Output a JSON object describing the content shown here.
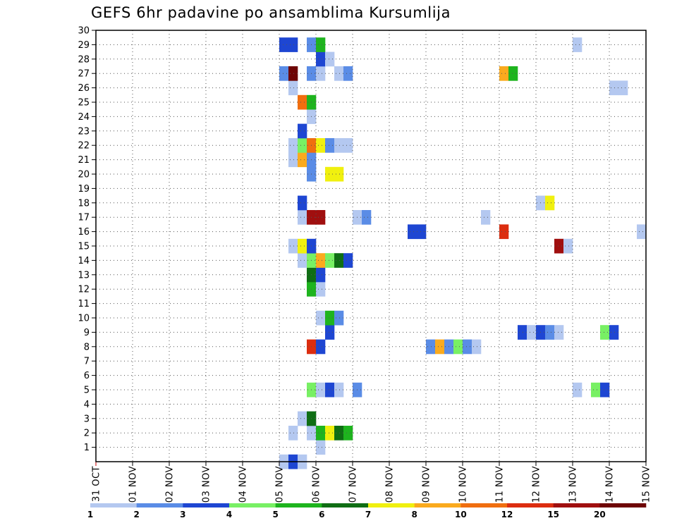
{
  "chart_data": {
    "type": "heatmap",
    "title": "GEFS 6hr padavine po ansamblima Kursumlija",
    "xlabel": "",
    "ylabel": "",
    "x_tick_labels": [
      "31 OCT",
      "01 NOV",
      "02 NOV",
      "03 NOV",
      "04 NOV",
      "05 NOV",
      "06 NOV",
      "07 NOV",
      "08 NOV",
      "09 NOV",
      "10 NOV",
      "11 NOV",
      "12 NOV",
      "13 NOV",
      "14 NOV",
      "15 NOV"
    ],
    "x_range_days": [
      0,
      15
    ],
    "time_step_hours": 6,
    "y_tick_labels": [
      "1",
      "2",
      "3",
      "4",
      "5",
      "6",
      "7",
      "8",
      "9",
      "10",
      "11",
      "12",
      "13",
      "14",
      "15",
      "16",
      "17",
      "18",
      "19",
      "20",
      "21",
      "22",
      "23",
      "24",
      "25",
      "26",
      "27",
      "28",
      "29",
      "30"
    ],
    "y_range": [
      0,
      30
    ],
    "grid": true,
    "colorbar": {
      "placement": "bottom",
      "labels": [
        "1",
        "2",
        "3",
        "4",
        "5",
        "6",
        "7",
        "8",
        "10",
        "12",
        "15",
        "20"
      ],
      "colors": [
        "#b4c8f0",
        "#5a8ce6",
        "#1e46d2",
        "#78f064",
        "#1eb41e",
        "#0f6e14",
        "#f0f00f",
        "#faaa1e",
        "#f06e0f",
        "#dc2d0f",
        "#a00f0f",
        "#6e0505"
      ]
    },
    "cells": [
      {
        "m": 0,
        "t": 20,
        "c": 0
      },
      {
        "m": 0,
        "t": 21,
        "c": 2
      },
      {
        "m": 0,
        "t": 22,
        "c": 0
      },
      {
        "m": 1,
        "t": 24,
        "c": 0
      },
      {
        "m": 2,
        "t": 21,
        "c": 0
      },
      {
        "m": 2,
        "t": 23,
        "c": 0
      },
      {
        "m": 2,
        "t": 24,
        "c": 4
      },
      {
        "m": 2,
        "t": 25,
        "c": 6
      },
      {
        "m": 2,
        "t": 26,
        "c": 5
      },
      {
        "m": 2,
        "t": 27,
        "c": 4
      },
      {
        "m": 3,
        "t": 22,
        "c": 0
      },
      {
        "m": 3,
        "t": 23,
        "c": 5
      },
      {
        "m": 5,
        "t": 23,
        "c": 3
      },
      {
        "m": 5,
        "t": 24,
        "c": 0
      },
      {
        "m": 5,
        "t": 25,
        "c": 2
      },
      {
        "m": 5,
        "t": 26,
        "c": 0
      },
      {
        "m": 5,
        "t": 28,
        "c": 1
      },
      {
        "m": 5,
        "t": 52,
        "c": 0
      },
      {
        "m": 5,
        "t": 54,
        "c": 3
      },
      {
        "m": 5,
        "t": 55,
        "c": 2
      },
      {
        "m": 8,
        "t": 23,
        "c": 9
      },
      {
        "m": 8,
        "t": 24,
        "c": 2
      },
      {
        "m": 8,
        "t": 36,
        "c": 1
      },
      {
        "m": 8,
        "t": 37,
        "c": 7
      },
      {
        "m": 8,
        "t": 38,
        "c": 1
      },
      {
        "m": 8,
        "t": 39,
        "c": 3
      },
      {
        "m": 8,
        "t": 40,
        "c": 1
      },
      {
        "m": 8,
        "t": 41,
        "c": 0
      },
      {
        "m": 9,
        "t": 25,
        "c": 2
      },
      {
        "m": 9,
        "t": 46,
        "c": 2
      },
      {
        "m": 9,
        "t": 47,
        "c": 0
      },
      {
        "m": 9,
        "t": 48,
        "c": 2
      },
      {
        "m": 9,
        "t": 49,
        "c": 1
      },
      {
        "m": 9,
        "t": 50,
        "c": 0
      },
      {
        "m": 9,
        "t": 55,
        "c": 3
      },
      {
        "m": 9,
        "t": 56,
        "c": 2
      },
      {
        "m": 10,
        "t": 24,
        "c": 0
      },
      {
        "m": 10,
        "t": 25,
        "c": 4
      },
      {
        "m": 10,
        "t": 26,
        "c": 1
      },
      {
        "m": 12,
        "t": 23,
        "c": 4
      },
      {
        "m": 12,
        "t": 24,
        "c": 0
      },
      {
        "m": 13,
        "t": 23,
        "c": 5
      },
      {
        "m": 13,
        "t": 24,
        "c": 2
      },
      {
        "m": 14,
        "t": 22,
        "c": 0
      },
      {
        "m": 14,
        "t": 23,
        "c": 3
      },
      {
        "m": 14,
        "t": 24,
        "c": 7
      },
      {
        "m": 14,
        "t": 25,
        "c": 3
      },
      {
        "m": 14,
        "t": 26,
        "c": 5
      },
      {
        "m": 14,
        "t": 27,
        "c": 2
      },
      {
        "m": 15,
        "t": 21,
        "c": 0
      },
      {
        "m": 15,
        "t": 22,
        "c": 6
      },
      {
        "m": 15,
        "t": 23,
        "c": 2
      },
      {
        "m": 15,
        "t": 50,
        "c": 10
      },
      {
        "m": 15,
        "t": 51,
        "c": 0
      },
      {
        "m": 16,
        "t": 34,
        "c": 2
      },
      {
        "m": 16,
        "t": 35,
        "c": 2
      },
      {
        "m": 16,
        "t": 44,
        "c": 9
      },
      {
        "m": 16,
        "t": 59,
        "c": 0
      },
      {
        "m": 17,
        "t": 22,
        "c": 0
      },
      {
        "m": 17,
        "t": 23,
        "c": 10
      },
      {
        "m": 17,
        "t": 24,
        "c": 10
      },
      {
        "m": 17,
        "t": 28,
        "c": 0
      },
      {
        "m": 17,
        "t": 29,
        "c": 1
      },
      {
        "m": 17,
        "t": 42,
        "c": 0
      },
      {
        "m": 18,
        "t": 22,
        "c": 2
      },
      {
        "m": 18,
        "t": 48,
        "c": 0
      },
      {
        "m": 18,
        "t": 49,
        "c": 6
      },
      {
        "m": 20,
        "t": 23,
        "c": 1
      },
      {
        "m": 20,
        "t": 25,
        "c": 6
      },
      {
        "m": 20,
        "t": 26,
        "c": 6
      },
      {
        "m": 21,
        "t": 21,
        "c": 0
      },
      {
        "m": 21,
        "t": 22,
        "c": 7
      },
      {
        "m": 21,
        "t": 23,
        "c": 1
      },
      {
        "m": 22,
        "t": 21,
        "c": 0
      },
      {
        "m": 22,
        "t": 22,
        "c": 3
      },
      {
        "m": 22,
        "t": 23,
        "c": 8
      },
      {
        "m": 22,
        "t": 24,
        "c": 6
      },
      {
        "m": 22,
        "t": 25,
        "c": 1
      },
      {
        "m": 22,
        "t": 26,
        "c": 0
      },
      {
        "m": 22,
        "t": 27,
        "c": 0
      },
      {
        "m": 23,
        "t": 22,
        "c": 2
      },
      {
        "m": 24,
        "t": 23,
        "c": 0
      },
      {
        "m": 25,
        "t": 22,
        "c": 8
      },
      {
        "m": 25,
        "t": 23,
        "c": 4
      },
      {
        "m": 26,
        "t": 21,
        "c": 0
      },
      {
        "m": 26,
        "t": 56,
        "c": 0
      },
      {
        "m": 26,
        "t": 57,
        "c": 0
      },
      {
        "m": 27,
        "t": 20,
        "c": 1
      },
      {
        "m": 27,
        "t": 21,
        "c": 11
      },
      {
        "m": 27,
        "t": 23,
        "c": 1
      },
      {
        "m": 27,
        "t": 24,
        "c": 0
      },
      {
        "m": 27,
        "t": 26,
        "c": 0
      },
      {
        "m": 27,
        "t": 27,
        "c": 1
      },
      {
        "m": 27,
        "t": 44,
        "c": 7
      },
      {
        "m": 27,
        "t": 45,
        "c": 4
      },
      {
        "m": 28,
        "t": 24,
        "c": 2
      },
      {
        "m": 28,
        "t": 25,
        "c": 0
      },
      {
        "m": 29,
        "t": 20,
        "c": 2
      },
      {
        "m": 29,
        "t": 21,
        "c": 2
      },
      {
        "m": 29,
        "t": 23,
        "c": 1
      },
      {
        "m": 29,
        "t": 24,
        "c": 4
      },
      {
        "m": 29,
        "t": 52,
        "c": 0
      }
    ]
  }
}
